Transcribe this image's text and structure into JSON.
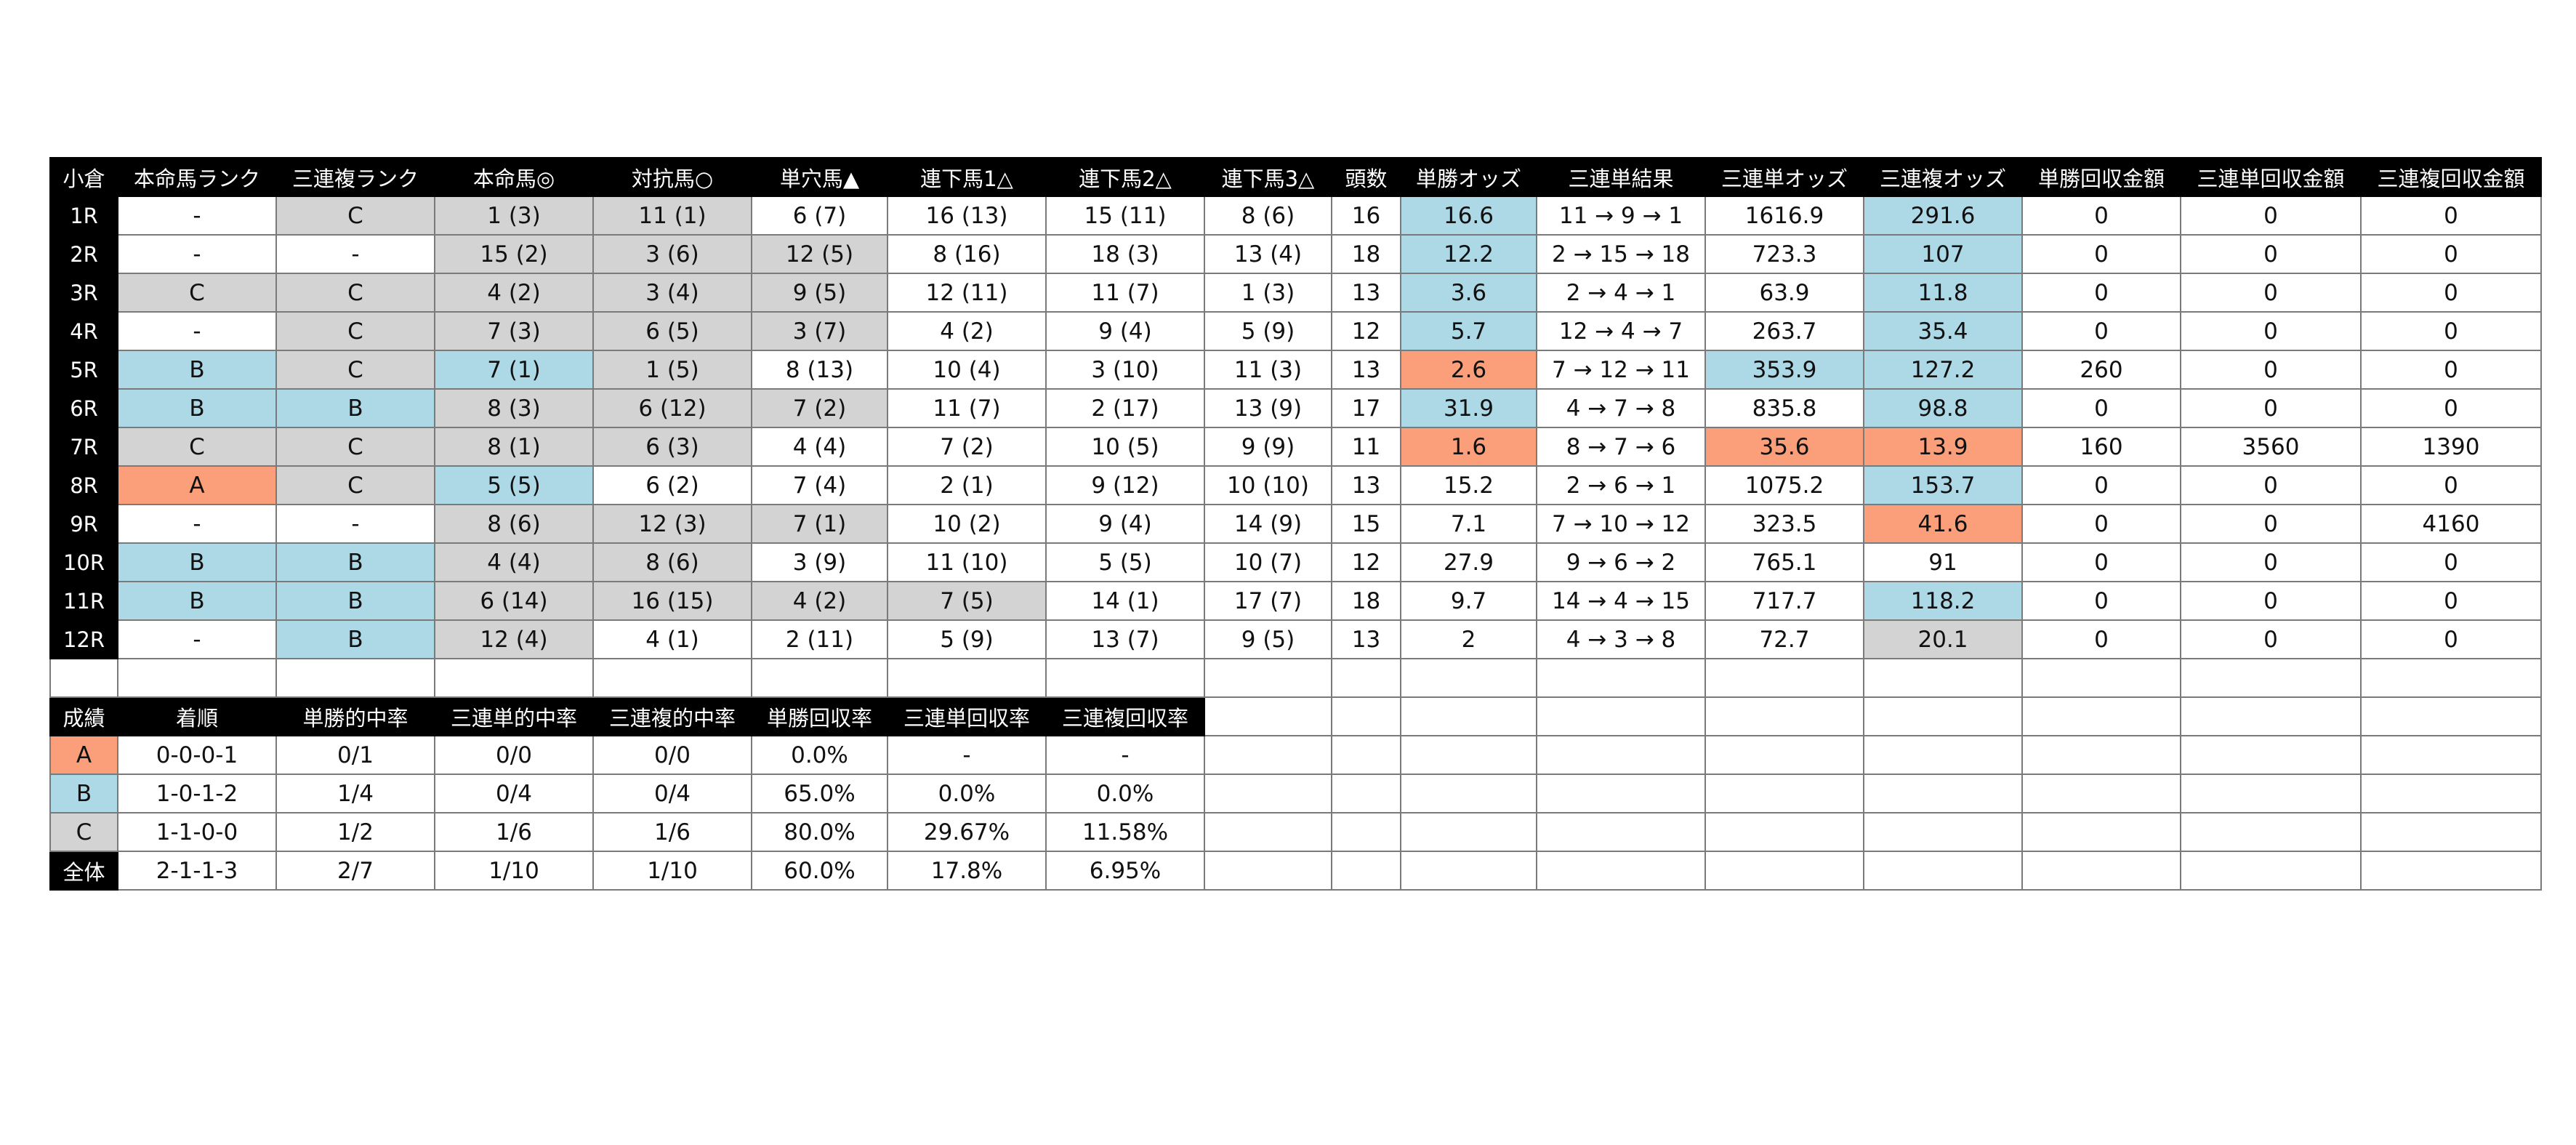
{
  "colors": {
    "header_bg": "#000000",
    "gray": "#d3d3d3",
    "blue": "#add8e6",
    "orange": "#fa9f7a"
  },
  "race_table": {
    "headers": [
      "小倉",
      "本命馬ランク",
      "三連複ランク",
      "本命馬◎",
      "対抗馬○",
      "単穴馬▲",
      "連下馬1△",
      "連下馬2△",
      "連下馬3△",
      "頭数",
      "単勝オッズ",
      "三連単結果",
      "三連単オッズ",
      "三連複オッズ",
      "単勝回収金額",
      "三連単回収金額",
      "三連複回収金額"
    ],
    "rows": [
      {
        "cells": [
          "1R",
          "-",
          "C",
          "1 (3)",
          "11 (1)",
          "6 (7)",
          "16 (13)",
          "15 (11)",
          "8 (6)",
          "16",
          "16.6",
          "11 → 9 → 1",
          "1616.9",
          "291.6",
          "0",
          "0",
          "0"
        ],
        "colors": [
          "",
          "",
          "gray",
          "gray",
          "gray",
          "",
          "",
          "",
          "",
          "",
          "blue",
          "",
          "",
          "blue",
          "",
          "",
          ""
        ]
      },
      {
        "cells": [
          "2R",
          "-",
          "-",
          "15 (2)",
          "3 (6)",
          "12 (5)",
          "8 (16)",
          "18 (3)",
          "13 (4)",
          "18",
          "12.2",
          "2 → 15 → 18",
          "723.3",
          "107",
          "0",
          "0",
          "0"
        ],
        "colors": [
          "",
          "",
          "",
          "gray",
          "gray",
          "gray",
          "",
          "",
          "",
          "",
          "blue",
          "",
          "",
          "blue",
          "",
          "",
          ""
        ]
      },
      {
        "cells": [
          "3R",
          "C",
          "C",
          "4 (2)",
          "3 (4)",
          "9 (5)",
          "12 (11)",
          "11 (7)",
          "1 (3)",
          "13",
          "3.6",
          "2 → 4 → 1",
          "63.9",
          "11.8",
          "0",
          "0",
          "0"
        ],
        "colors": [
          "",
          "gray",
          "gray",
          "gray",
          "gray",
          "gray",
          "",
          "",
          "",
          "",
          "blue",
          "",
          "",
          "blue",
          "",
          "",
          ""
        ]
      },
      {
        "cells": [
          "4R",
          "-",
          "C",
          "7 (3)",
          "6 (5)",
          "3 (7)",
          "4 (2)",
          "9 (4)",
          "5 (9)",
          "12",
          "5.7",
          "12 → 4 → 7",
          "263.7",
          "35.4",
          "0",
          "0",
          "0"
        ],
        "colors": [
          "",
          "",
          "gray",
          "gray",
          "gray",
          "gray",
          "",
          "",
          "",
          "",
          "blue",
          "",
          "",
          "blue",
          "",
          "",
          ""
        ]
      },
      {
        "cells": [
          "5R",
          "B",
          "C",
          "7 (1)",
          "1 (5)",
          "8 (13)",
          "10 (4)",
          "3 (10)",
          "11 (3)",
          "13",
          "2.6",
          "7 → 12 → 11",
          "353.9",
          "127.2",
          "260",
          "0",
          "0"
        ],
        "colors": [
          "",
          "blue",
          "gray",
          "blue",
          "gray",
          "",
          "",
          "",
          "",
          "",
          "orange",
          "",
          "blue",
          "blue",
          "",
          "",
          ""
        ]
      },
      {
        "cells": [
          "6R",
          "B",
          "B",
          "8 (3)",
          "6 (12)",
          "7 (2)",
          "11 (7)",
          "2 (17)",
          "13 (9)",
          "17",
          "31.9",
          "4 → 7 → 8",
          "835.8",
          "98.8",
          "0",
          "0",
          "0"
        ],
        "colors": [
          "",
          "blue",
          "blue",
          "gray",
          "gray",
          "gray",
          "",
          "",
          "",
          "",
          "blue",
          "",
          "",
          "blue",
          "",
          "",
          ""
        ]
      },
      {
        "cells": [
          "7R",
          "C",
          "C",
          "8 (1)",
          "6 (3)",
          "4 (4)",
          "7 (2)",
          "10 (5)",
          "9 (9)",
          "11",
          "1.6",
          "8 → 7 → 6",
          "35.6",
          "13.9",
          "160",
          "3560",
          "1390"
        ],
        "colors": [
          "",
          "gray",
          "gray",
          "gray",
          "gray",
          "",
          "",
          "",
          "",
          "",
          "orange",
          "",
          "orange",
          "orange",
          "",
          "",
          ""
        ]
      },
      {
        "cells": [
          "8R",
          "A",
          "C",
          "5 (5)",
          "6 (2)",
          "7 (4)",
          "2 (1)",
          "9 (12)",
          "10 (10)",
          "13",
          "15.2",
          "2 → 6 → 1",
          "1075.2",
          "153.7",
          "0",
          "0",
          "0"
        ],
        "colors": [
          "",
          "orange",
          "gray",
          "blue",
          "",
          "",
          "",
          "",
          "",
          "",
          "",
          "",
          "",
          "blue",
          "",
          "",
          ""
        ]
      },
      {
        "cells": [
          "9R",
          "-",
          "-",
          "8 (6)",
          "12 (3)",
          "7 (1)",
          "10 (2)",
          "9 (4)",
          "14 (9)",
          "15",
          "7.1",
          "7 → 10 → 12",
          "323.5",
          "41.6",
          "0",
          "0",
          "4160"
        ],
        "colors": [
          "",
          "",
          "",
          "gray",
          "gray",
          "gray",
          "",
          "",
          "",
          "",
          "",
          "",
          "",
          "orange",
          "",
          "",
          ""
        ]
      },
      {
        "cells": [
          "10R",
          "B",
          "B",
          "4 (4)",
          "8 (6)",
          "3 (9)",
          "11 (10)",
          "5 (5)",
          "10 (7)",
          "12",
          "27.9",
          "9 → 6 → 2",
          "765.1",
          "91",
          "0",
          "0",
          "0"
        ],
        "colors": [
          "",
          "blue",
          "blue",
          "gray",
          "gray",
          "",
          "",
          "",
          "",
          "",
          "",
          "",
          "",
          "",
          "",
          "",
          ""
        ]
      },
      {
        "cells": [
          "11R",
          "B",
          "B",
          "6 (14)",
          "16 (15)",
          "4 (2)",
          "7 (5)",
          "14 (1)",
          "17 (7)",
          "18",
          "9.7",
          "14 → 4 → 15",
          "717.7",
          "118.2",
          "0",
          "0",
          "0"
        ],
        "colors": [
          "",
          "blue",
          "blue",
          "gray",
          "gray",
          "gray",
          "gray",
          "",
          "",
          "",
          "",
          "",
          "",
          "blue",
          "",
          "",
          ""
        ]
      },
      {
        "cells": [
          "12R",
          "-",
          "B",
          "12 (4)",
          "4 (1)",
          "2 (11)",
          "5 (9)",
          "13 (7)",
          "9 (5)",
          "13",
          "2",
          "4 → 3 → 8",
          "72.7",
          "20.1",
          "0",
          "0",
          "0"
        ],
        "colors": [
          "",
          "",
          "blue",
          "gray",
          "",
          "",
          "",
          "",
          "",
          "",
          "",
          "",
          "",
          "gray",
          "",
          "",
          ""
        ]
      }
    ]
  },
  "summary_table": {
    "headers": [
      "成績",
      "着順",
      "単勝的中率",
      "三連単的中率",
      "三連複的中率",
      "単勝回収率",
      "三連単回収率",
      "三連複回収率"
    ],
    "rows": [
      {
        "cells": [
          "A",
          "0-0-0-1",
          "0/1",
          "0/0",
          "0/0",
          "0.0%",
          "-",
          "-"
        ],
        "colors": [
          "orange",
          "",
          "",
          "",
          "",
          "",
          "",
          ""
        ]
      },
      {
        "cells": [
          "B",
          "1-0-1-2",
          "1/4",
          "0/4",
          "0/4",
          "65.0%",
          "0.0%",
          "0.0%"
        ],
        "colors": [
          "blue",
          "",
          "",
          "",
          "",
          "",
          "",
          ""
        ]
      },
      {
        "cells": [
          "C",
          "1-1-0-0",
          "1/2",
          "1/6",
          "1/6",
          "80.0%",
          "29.67%",
          "11.58%"
        ],
        "colors": [
          "gray",
          "",
          "",
          "",
          "",
          "",
          "",
          ""
        ]
      },
      {
        "cells": [
          "全体",
          "2-1-1-3",
          "2/7",
          "1/10",
          "1/10",
          "60.0%",
          "17.8%",
          "6.95%"
        ],
        "colors": [
          "header",
          "",
          "",
          "",
          "",
          "",
          "",
          ""
        ]
      }
    ]
  }
}
